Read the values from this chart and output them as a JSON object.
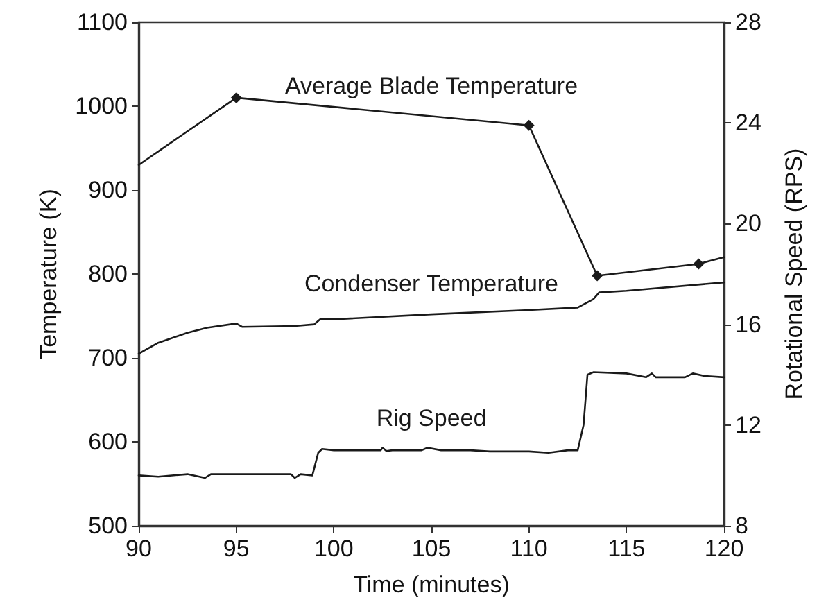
{
  "chart_data": {
    "type": "line",
    "xlabel": "Time (minutes)",
    "ylabel": "Temperature (K)",
    "y2label": "Rotational Speed (RPS)",
    "xlim": [
      90,
      120
    ],
    "xticks": [
      90,
      95,
      100,
      105,
      110,
      115,
      120
    ],
    "ylim": [
      500,
      1100
    ],
    "yticks": [
      500,
      600,
      700,
      800,
      900,
      1000,
      1100
    ],
    "y2lim": [
      8,
      28
    ],
    "y2ticks": [
      8,
      12,
      16,
      20,
      24,
      28
    ],
    "grid": false,
    "legend": false,
    "line_style": "solid",
    "series": [
      {
        "name": "Average Blade Temperature",
        "color": "#1a1a1a",
        "marker": "diamond",
        "x": [
          90,
          95,
          110,
          113.5,
          118.7,
          120
        ],
        "values": [
          930,
          1010,
          977,
          798,
          812,
          820
        ]
      },
      {
        "name": "Condenser Temperature",
        "color": "#1a1a1a",
        "marker": "none",
        "x": [
          90,
          91,
          92.5,
          93.5,
          95,
          95.3,
          98,
          99,
          99.3,
          100,
          105,
          110,
          112.5,
          113.3,
          113.6,
          115,
          120
        ],
        "values": [
          705,
          718,
          730,
          736,
          741,
          737,
          738,
          740,
          746,
          746,
          752,
          757,
          760,
          770,
          778,
          780,
          790
        ]
      },
      {
        "name": "Rig Speed",
        "color": "#1a1a1a",
        "marker": "none",
        "axis": "y2",
        "x": [
          90,
          91,
          92.5,
          93.4,
          93.7,
          97.8,
          98,
          98.3,
          98.9,
          99.2,
          99.4,
          100,
          102.4,
          102.5,
          102.7,
          103,
          104.5,
          104.8,
          105.5,
          107,
          108,
          110,
          111,
          112,
          112.5,
          112.8,
          113,
          113.3,
          115,
          116,
          116.3,
          116.5,
          118,
          118.4,
          119,
          120
        ],
        "values": [
          10.0,
          9.95,
          10.05,
          9.9,
          10.05,
          10.05,
          9.9,
          10.05,
          10.0,
          10.9,
          11.05,
          11.0,
          11.0,
          11.1,
          10.97,
          11.0,
          11.0,
          11.1,
          11.0,
          11.0,
          10.95,
          10.95,
          10.9,
          11.0,
          11.0,
          12.0,
          14.0,
          14.1,
          14.05,
          13.9,
          14.05,
          13.9,
          13.9,
          14.05,
          13.95,
          13.9
        ]
      }
    ]
  }
}
